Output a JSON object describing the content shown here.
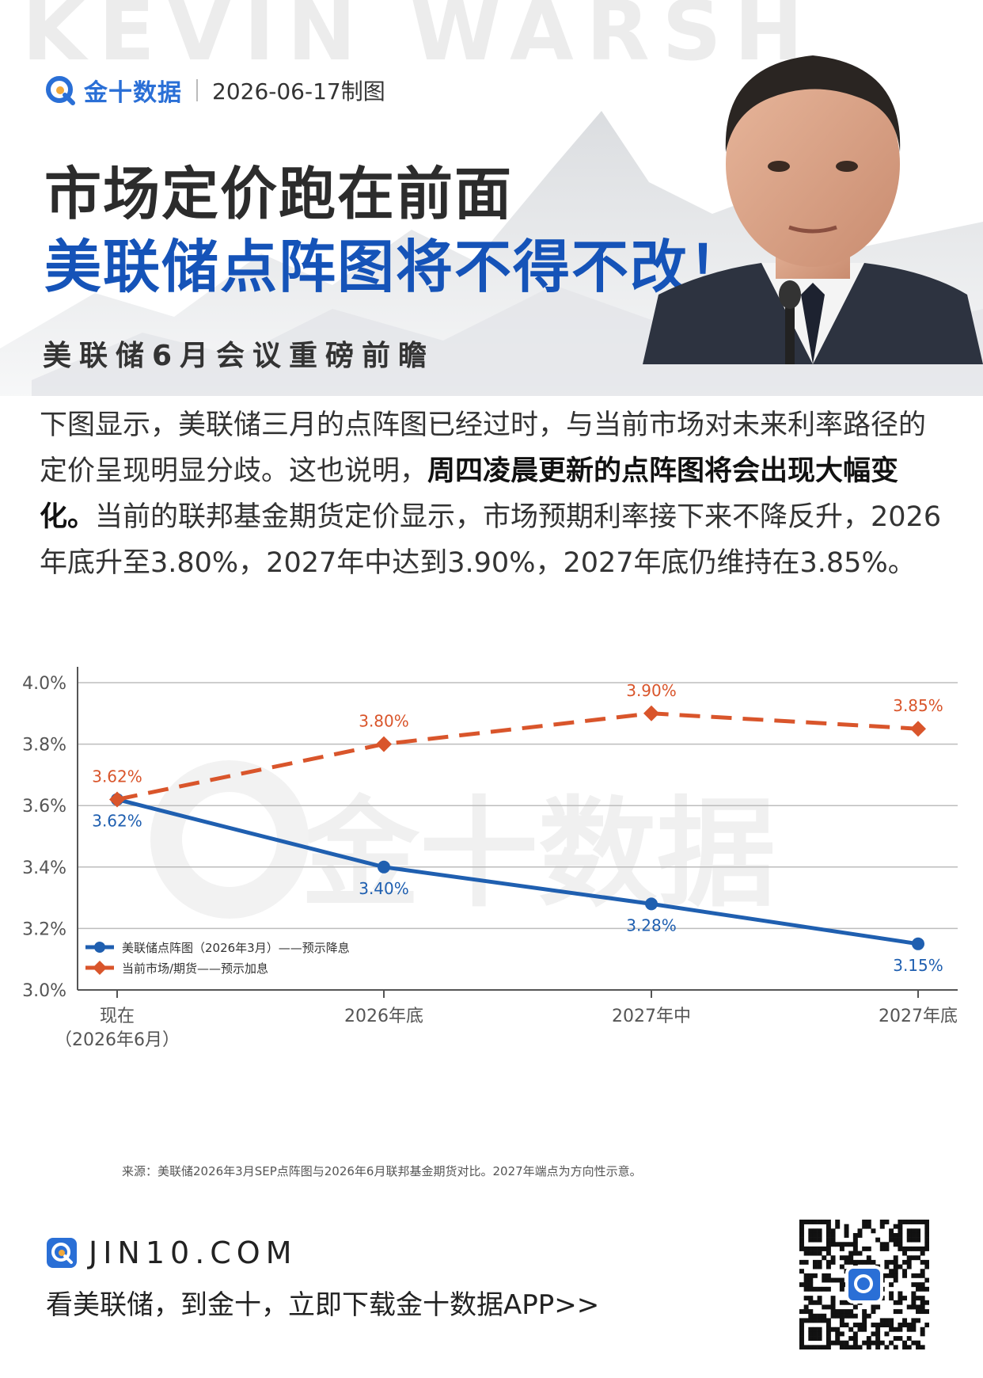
{
  "header": {
    "watermark": "KEVIN WARSH",
    "brand": "金十数据",
    "date": "2026-06-17制图",
    "title_line1": "市场定价跑在前面",
    "title_line2": "美联储点阵图将不得不改！",
    "subtitle": "美联储6月会议重磅前瞻"
  },
  "body": {
    "part1": "下图显示，美联储三月的点阵图已经过时，与当前市场对未来利率路径的定价呈现明显分歧。这也说明，",
    "bold": "周四凌晨更新的点阵图将会出现大幅变化。",
    "part2": "当前的联邦基金期货定价显示，市场预期利率接下来不降反升，2026年底升至3.80%，2027年中达到3.90%，2027年底仍维持在3.85%。"
  },
  "chart_data": {
    "type": "line",
    "categories": [
      "现在\n（2026年6月）",
      "2026年底",
      "2027年中",
      "2027年底"
    ],
    "ylim": [
      3.0,
      4.0
    ],
    "yticks": [
      "3.0%",
      "3.2%",
      "3.4%",
      "3.6%",
      "3.8%",
      "4.0%"
    ],
    "ytick_values": [
      3.0,
      3.2,
      3.4,
      3.6,
      3.8,
      4.0
    ],
    "grid": true,
    "legend_position": "bottom-left",
    "watermark": "金十数据",
    "series": [
      {
        "name": "美联储点阵图（2026年3月）——预示降息",
        "values": [
          3.62,
          3.4,
          3.28,
          3.15
        ],
        "labels": [
          "3.62%",
          "3.40%",
          "3.28%",
          "3.15%"
        ],
        "color": "#1f5fb0",
        "style": "solid",
        "marker": "circle"
      },
      {
        "name": "当前市场/期货——预示加息",
        "values": [
          3.62,
          3.8,
          3.9,
          3.85
        ],
        "labels": [
          "3.62%",
          "3.80%",
          "3.90%",
          "3.85%"
        ],
        "color": "#d9552b",
        "style": "dashed",
        "marker": "diamond"
      }
    ]
  },
  "source": "来源：美联储2026年3月SEP点阵图与2026年6月联邦基金期货对比。2027年端点为方向性示意。",
  "footer": {
    "site": "JIN10.COM",
    "slogan": "看美联储，到金十，立即下载金十数据APP>>"
  }
}
